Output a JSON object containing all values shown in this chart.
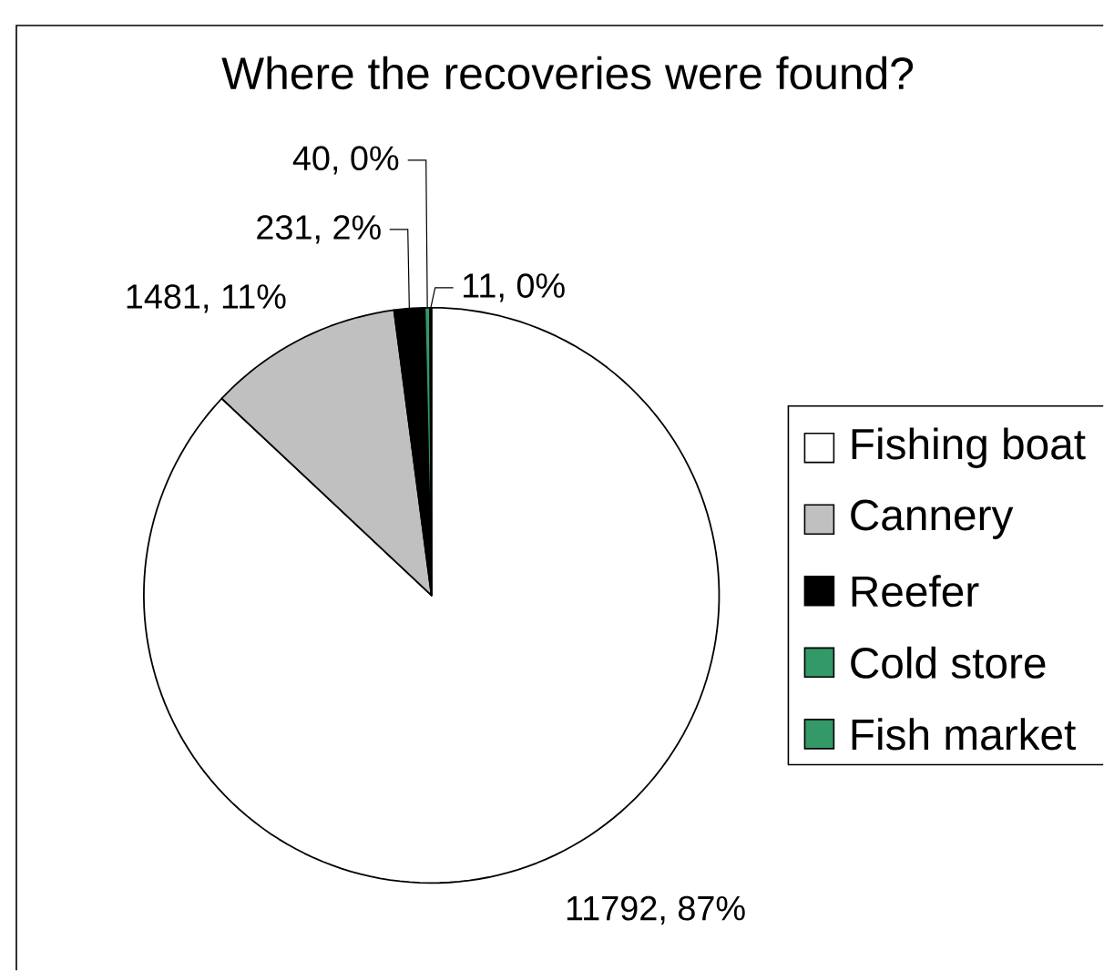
{
  "chart_data": {
    "type": "pie",
    "title": "Where the recoveries were found?",
    "categories": [
      "Fishing boat",
      "Cannery",
      "Reefer",
      "Cold store",
      "Fish market"
    ],
    "values": [
      11792,
      1481,
      231,
      40,
      11
    ],
    "colors": [
      "#ffffff",
      "#c0c0c0",
      "#000000",
      "#339966",
      "#339966"
    ],
    "value_labels": [
      "11792, 87%",
      "1481, 11%",
      "231, 2%",
      "40, 0%",
      "11, 0%"
    ],
    "legend": "right"
  }
}
